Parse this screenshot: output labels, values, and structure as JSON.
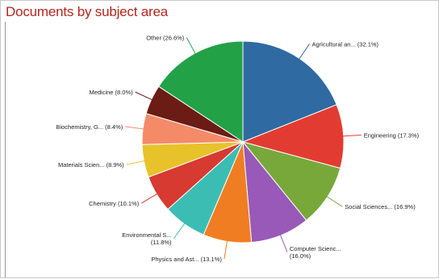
{
  "title": "Documents by subject area",
  "chart_data": {
    "type": "pie",
    "title": "Documents by subject area",
    "start_angle_deg": 0,
    "direction": "clockwise",
    "slices": [
      {
        "label": "Agricultural an... (32.1%)",
        "lines": [
          "Agricultural an... (32.1%)"
        ],
        "value": 32.1,
        "color": "#2f6aa2",
        "label_side": "right"
      },
      {
        "label": "Engineering (17.3%)",
        "lines": [
          "Engineering (17.3%)"
        ],
        "value": 17.3,
        "color": "#e23c32",
        "label_side": "right"
      },
      {
        "label": "Social Sciences... (16.9%)",
        "lines": [
          "Social Sciences... (16.9%)"
        ],
        "value": 16.9,
        "color": "#78a83a",
        "label_side": "right"
      },
      {
        "label": "Computer Scienc... (16.0%)",
        "lines": [
          "Computer Scienc...",
          "(16.0%)"
        ],
        "value": 16.0,
        "color": "#9859b8",
        "label_side": "right"
      },
      {
        "label": "Physics and Ast... (13.1%)",
        "lines": [
          "Physics and Ast... (13.1%)"
        ],
        "value": 13.1,
        "color": "#f07d22",
        "label_side": "left"
      },
      {
        "label": "Environmental S... (11.8%)",
        "lines": [
          "Environmental S...",
          "(11.8%)"
        ],
        "value": 11.8,
        "color": "#3cbdb4",
        "label_side": "left"
      },
      {
        "label": "Chemistry (10.1%)",
        "lines": [
          "Chemistry (10.1%)"
        ],
        "value": 10.1,
        "color": "#d63a30",
        "label_side": "left"
      },
      {
        "label": "Materials Scien... (8.9%)",
        "lines": [
          "Materials Scien... (8.9%)"
        ],
        "value": 8.9,
        "color": "#e8c22a",
        "label_side": "left"
      },
      {
        "label": "Biochemistry, G... (8.4%)",
        "lines": [
          "Biochemistry, G... (8.4%)"
        ],
        "value": 8.4,
        "color": "#f58a68",
        "label_side": "left"
      },
      {
        "label": "Medicine (8.0%)",
        "lines": [
          "Medicine (8.0%)"
        ],
        "value": 8.0,
        "color": "#6b1c14",
        "label_side": "left"
      },
      {
        "label": "Other (26.6%)",
        "lines": [
          "Other (26.6%)"
        ],
        "value": 26.6,
        "color": "#22a146",
        "label_side": "left"
      }
    ],
    "legend": "none"
  }
}
